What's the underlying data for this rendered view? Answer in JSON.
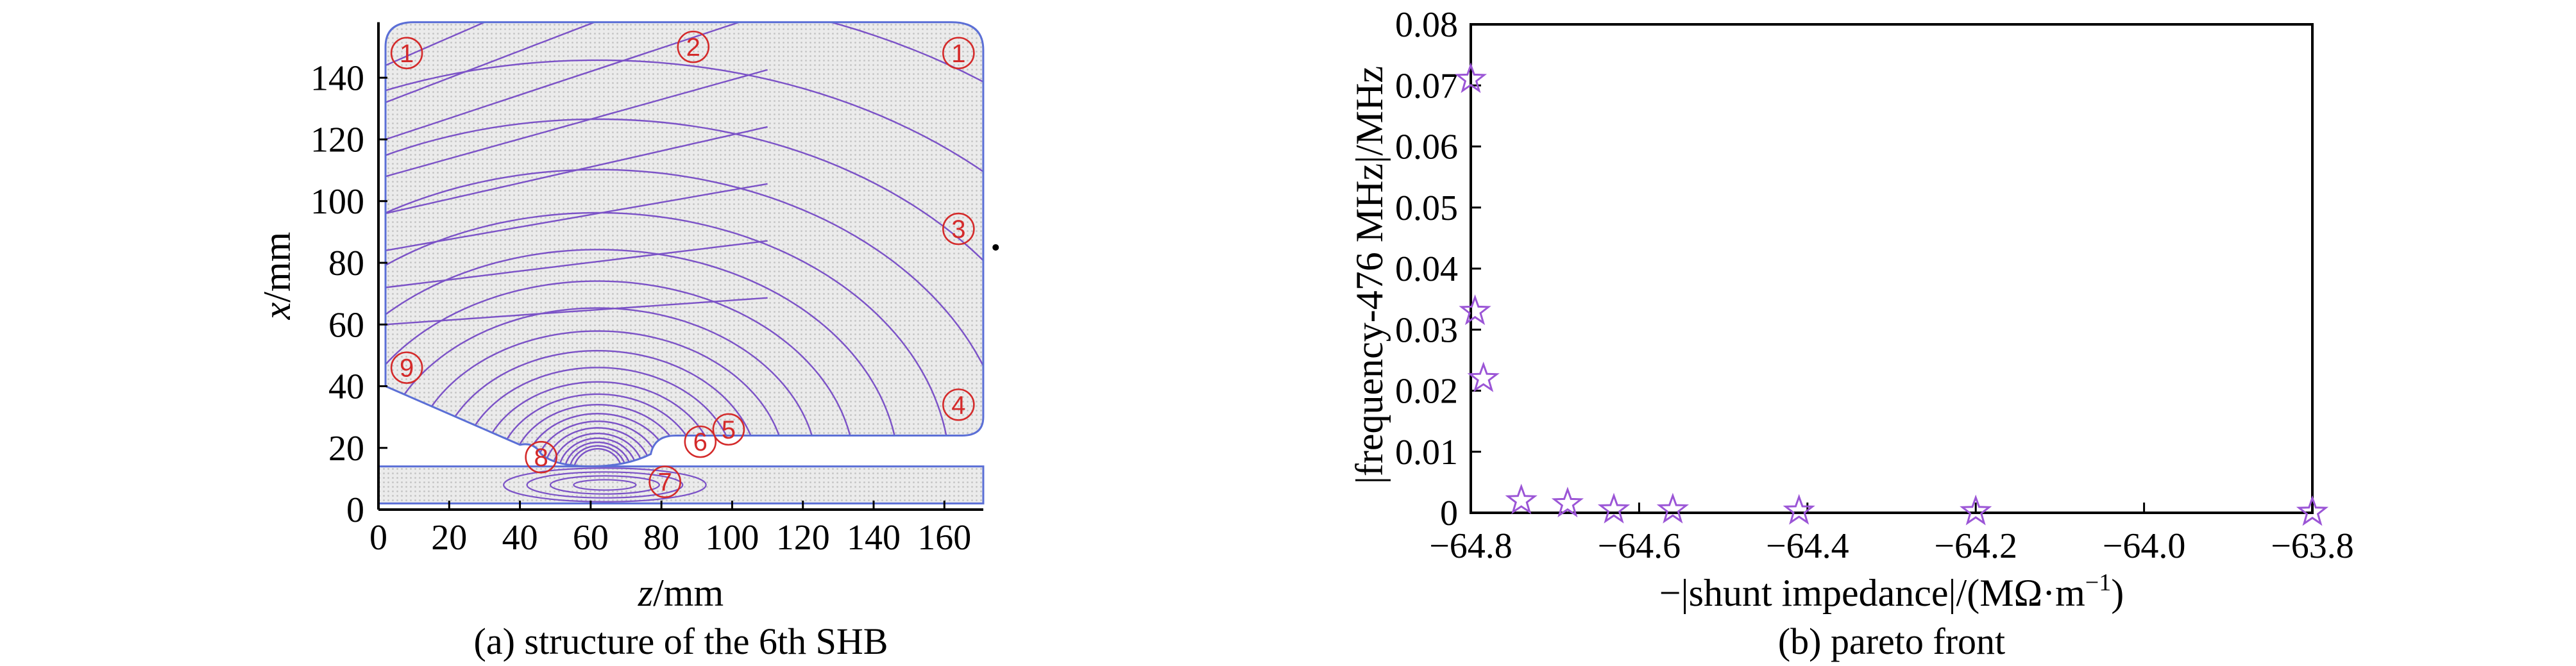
{
  "panel_a": {
    "caption": "(a) structure of the 6th SHB",
    "xlabel_var": "z",
    "xlabel_unit": "/mm",
    "ylabel_var": "x",
    "ylabel_unit": "/mm",
    "xlim": [
      0,
      175
    ],
    "ylim": [
      0,
      160
    ],
    "x_ticks": [
      "0",
      "20",
      "40",
      "60",
      "80",
      "100",
      "120",
      "140",
      "160"
    ],
    "y_ticks": [
      "0",
      "20",
      "40",
      "60",
      "80",
      "100",
      "120",
      "140"
    ],
    "labels": [
      "1",
      "2",
      "1",
      "3",
      "4",
      "5",
      "6",
      "7",
      "8",
      "9"
    ],
    "colors": {
      "field_lines": "#7b52c7",
      "outline": "#5b6fd6",
      "fill": "#e2e2e2",
      "labels": "#d42a2a"
    }
  },
  "chart_data": {
    "type": "scatter",
    "caption": "(b) pareto front",
    "xlabel": "−|shunt impedance|/(MΩ·m",
    "xlabel_sup": "−1",
    "xlabel_end": ")",
    "ylabel": "|frequency-476 MHz|/MHz",
    "xlim": [
      -64.8,
      -63.8
    ],
    "ylim": [
      0,
      0.08
    ],
    "x_ticks": [
      "−64.8",
      "−64.6",
      "−64.4",
      "−64.2",
      "−64.0",
      "−63.8"
    ],
    "y_ticks": [
      "0",
      "0.01",
      "0.02",
      "0.03",
      "0.04",
      "0.05",
      "0.06",
      "0.07",
      "0.08"
    ],
    "marker": "star",
    "marker_color": "#9b55d6",
    "points": [
      {
        "x": -64.8,
        "y": 0.071
      },
      {
        "x": -64.795,
        "y": 0.033
      },
      {
        "x": -64.785,
        "y": 0.022
      },
      {
        "x": -64.74,
        "y": 0.002
      },
      {
        "x": -64.685,
        "y": 0.0015
      },
      {
        "x": -64.63,
        "y": 0.0005
      },
      {
        "x": -64.56,
        "y": 0.0005
      },
      {
        "x": -64.41,
        "y": 0.0003
      },
      {
        "x": -64.2,
        "y": 0.0002
      },
      {
        "x": -63.8,
        "y": 0.0001
      }
    ]
  }
}
